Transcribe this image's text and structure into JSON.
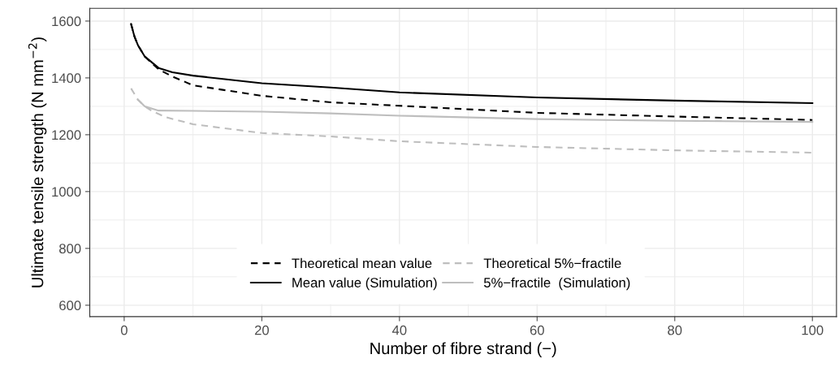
{
  "chart_data": {
    "type": "line",
    "xlabel": "Number of fibre strand (−)",
    "ylabel": "Ultimate tensile strength (N mm$^{−2}$)",
    "xlim": [
      -5,
      103.5
    ],
    "ylim": [
      560,
      1645
    ],
    "xticks": [
      0,
      20,
      40,
      60,
      80,
      100
    ],
    "yticks": [
      600,
      800,
      1000,
      1200,
      1400,
      1600
    ],
    "grid": true,
    "legend": "bottom",
    "series": [
      {
        "name": "Theoretical mean value",
        "color": "#000000",
        "line_style": "dashed",
        "x": [
          1,
          1.5,
          2,
          3,
          5,
          7,
          10,
          20,
          30,
          40,
          60,
          80,
          100
        ],
        "values": [
          1590,
          1545,
          1515,
          1475,
          1430,
          1405,
          1374,
          1337,
          1314,
          1302,
          1277,
          1264,
          1252
        ]
      },
      {
        "name": "Mean value (Simulation)",
        "color": "#000000",
        "line_style": "solid",
        "x": [
          1,
          1.5,
          2,
          3,
          5,
          7,
          10,
          20,
          30,
          40,
          60,
          80,
          100
        ],
        "values": [
          1590,
          1545,
          1515,
          1475,
          1435,
          1420,
          1408,
          1381,
          1366,
          1349,
          1331,
          1320,
          1311
        ]
      },
      {
        "name": "Theoretical 5%−fractile",
        "color": "#bebebe",
        "line_style": "dashed",
        "x": [
          1,
          2,
          3,
          4,
          6,
          10,
          20,
          30,
          40,
          60,
          80,
          100
        ],
        "values": [
          1363,
          1323,
          1300,
          1284,
          1262,
          1237,
          1206,
          1194,
          1177,
          1157,
          1145,
          1137
        ]
      },
      {
        "name": "5%−fractile  (Simulation)",
        "color": "#bebebe",
        "line_style": "solid",
        "x": [
          2,
          3,
          5,
          10,
          20,
          30,
          40,
          60,
          80,
          100
        ],
        "values": [
          1323,
          1300,
          1285,
          1284,
          1281,
          1275,
          1267,
          1255,
          1249,
          1245
        ]
      }
    ]
  }
}
